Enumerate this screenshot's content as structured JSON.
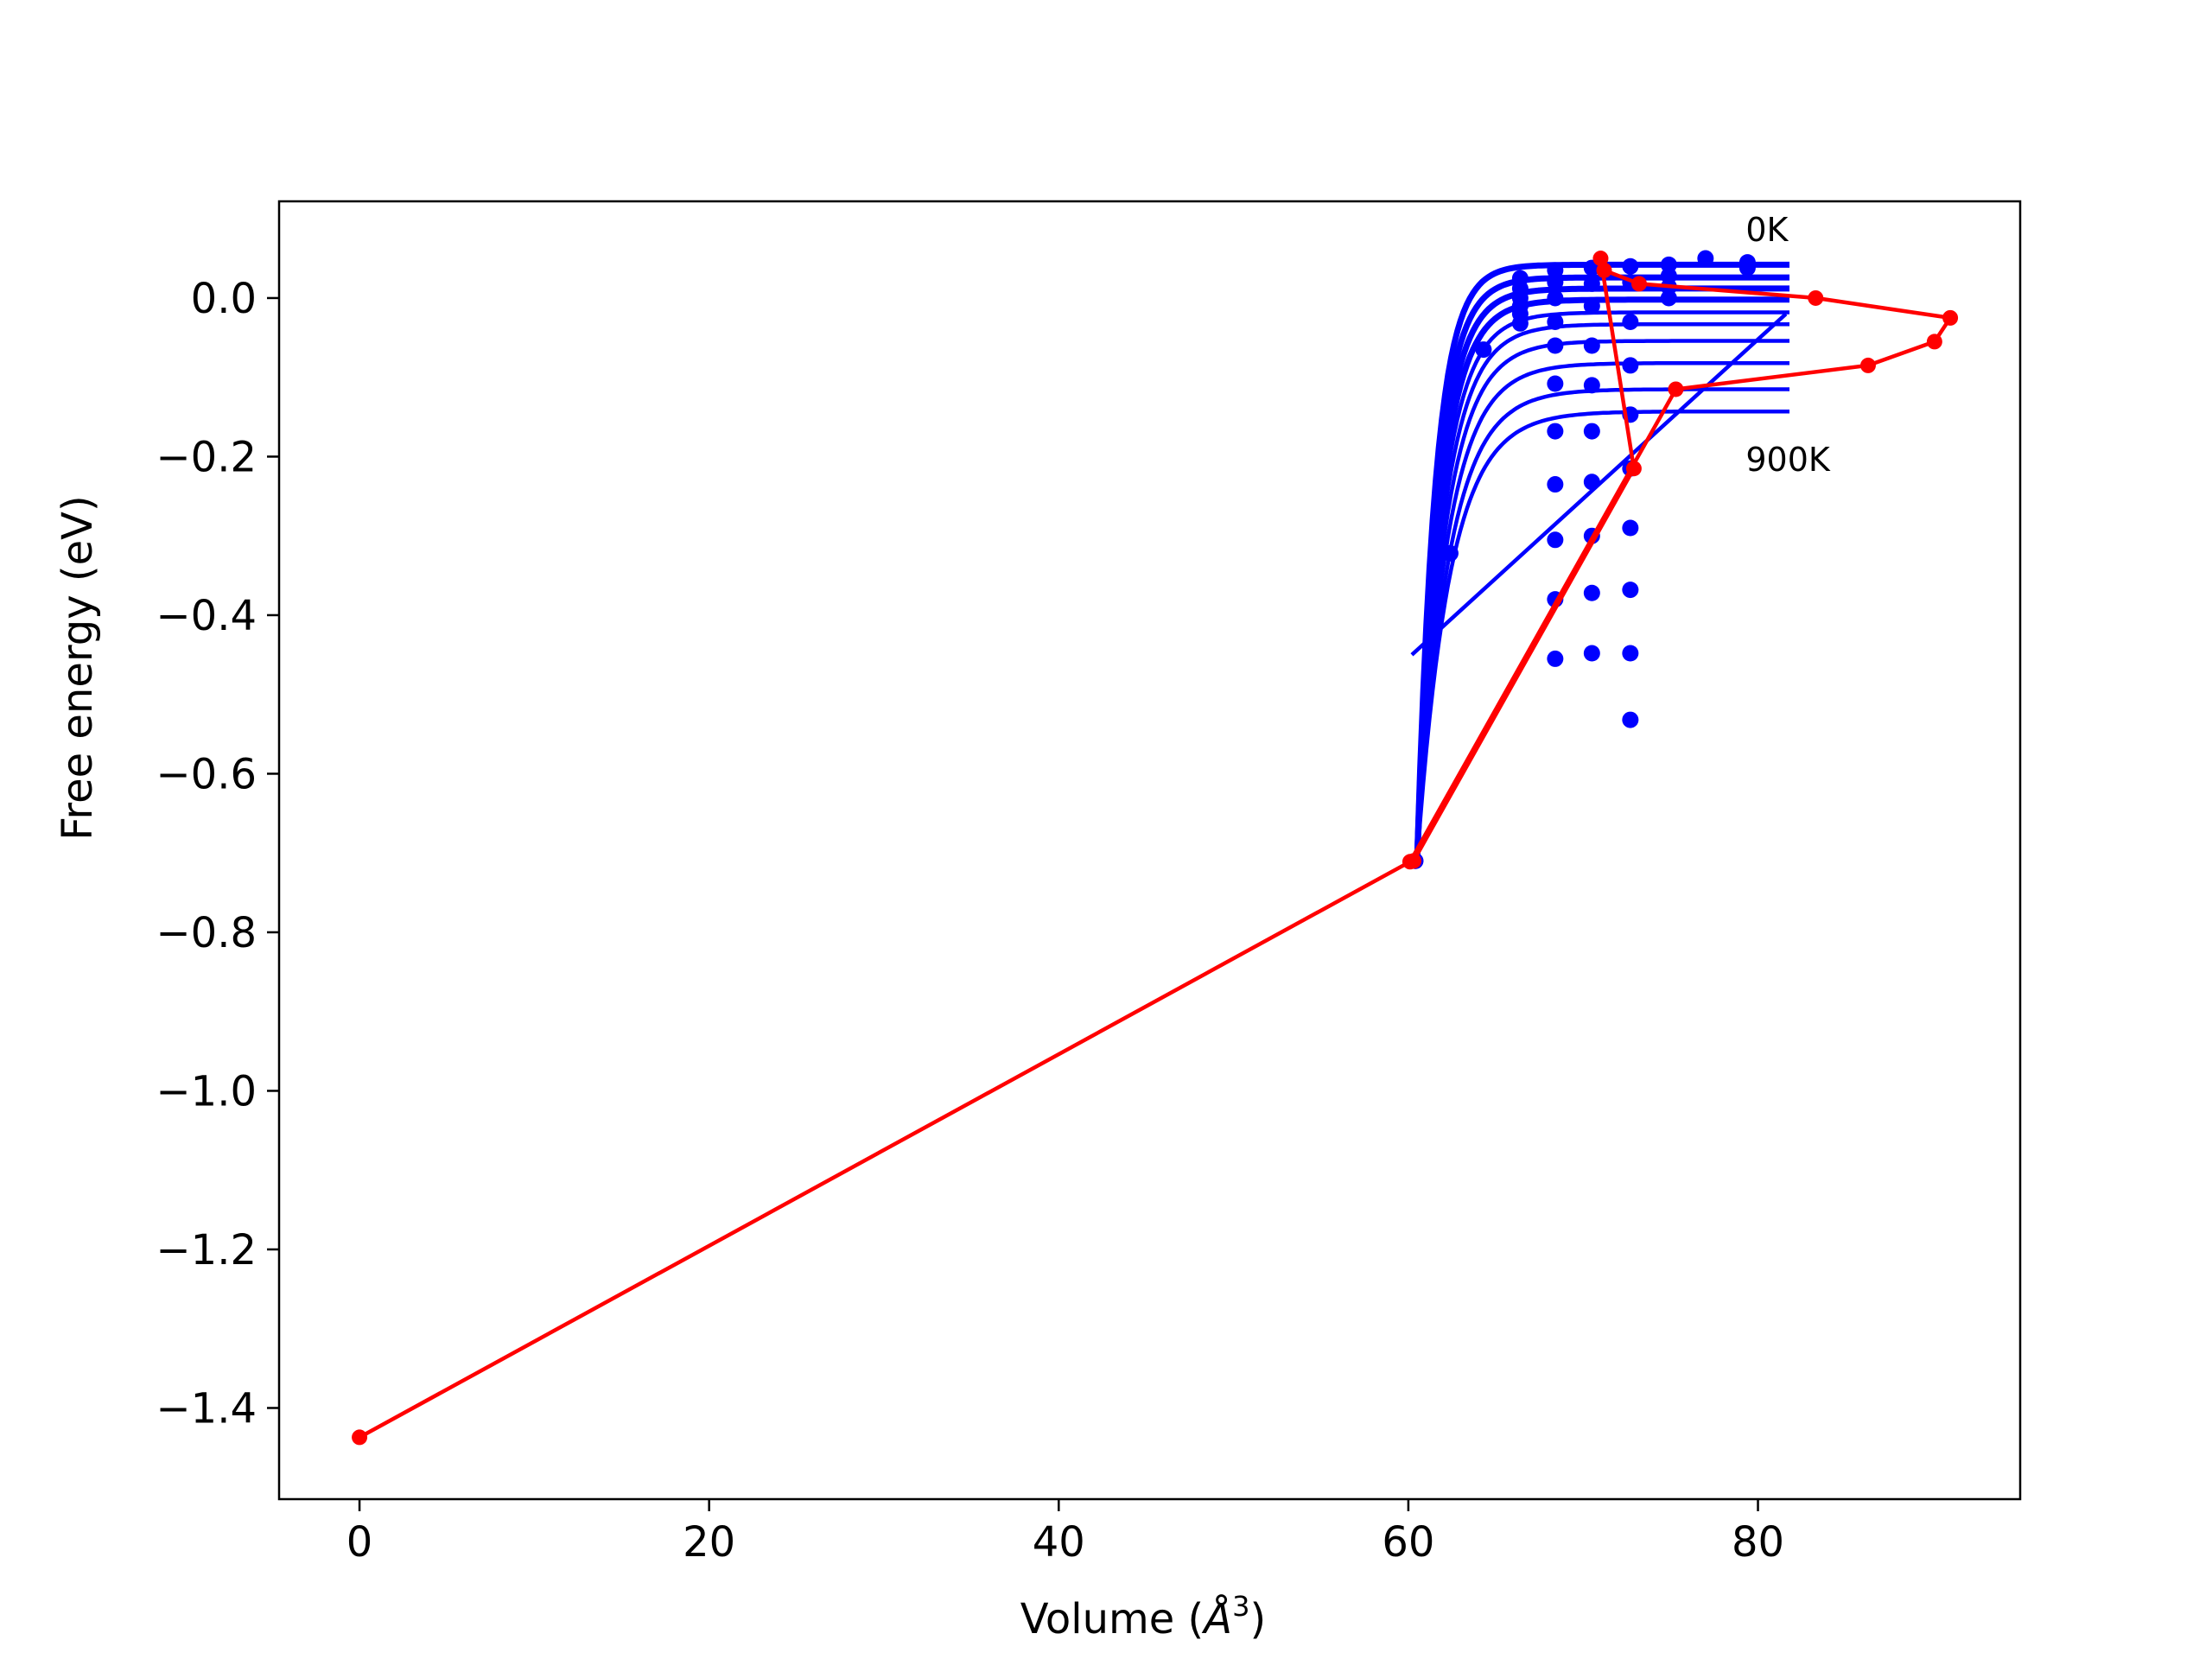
{
  "chart_data": {
    "type": "line",
    "title": "",
    "xlabel_main": "Volume (",
    "xlabel_sym": "Å",
    "xlabel_exp": "3",
    "xlabel_close": ")",
    "ylabel": "Free energy (eV)",
    "xlim": [
      -4.6,
      95.0
    ],
    "ylim": [
      -1.515,
      0.122
    ],
    "xticks": [
      0,
      20,
      40,
      60,
      80
    ],
    "yticks": [
      0.0,
      -0.2,
      -0.4,
      -0.6,
      -0.8,
      -1.0,
      -1.2,
      -1.4
    ],
    "xtick_labels": [
      "0",
      "20",
      "40",
      "60",
      "80"
    ],
    "ytick_labels": [
      "0.0",
      "−0.2",
      "−0.4",
      "−0.6",
      "−0.8",
      "−1.0",
      "−1.2",
      "−1.4"
    ],
    "grid": false,
    "annotations": [
      {
        "text": "0K",
        "x": 79.3,
        "y": 0.072
      },
      {
        "text": "900K",
        "x": 79.3,
        "y": -0.218
      }
    ],
    "fit_curves": {
      "color": "#0000ff",
      "x_start": 60.5,
      "x_end": 81.8,
      "x_rise": 61.2,
      "temperatures_K": [
        0,
        100,
        200,
        300,
        400,
        500,
        600,
        700,
        800,
        900
      ],
      "plateau_values": [
        0.042,
        0.026,
        0.012,
        -0.002,
        -0.018,
        -0.033,
        -0.054,
        -0.082,
        -0.115,
        -0.143
      ],
      "curve_shape": "exp"
    },
    "fit_line": {
      "color": "#0000ff",
      "x": [
        60.2,
        81.6
      ],
      "y": [
        -0.45,
        -0.02
      ]
    },
    "scatter_series": {
      "color": "#0000ff",
      "points": [
        [
          60.4,
          -0.71
        ],
        [
          62.4,
          -0.322
        ],
        [
          64.3,
          -0.065
        ],
        [
          66.4,
          0.025
        ],
        [
          66.4,
          0.012
        ],
        [
          66.4,
          0.0
        ],
        [
          66.4,
          -0.01
        ],
        [
          66.4,
          -0.02
        ],
        [
          66.4,
          -0.032
        ],
        [
          68.4,
          0.035
        ],
        [
          68.4,
          0.02
        ],
        [
          68.4,
          0.0
        ],
        [
          68.4,
          -0.03
        ],
        [
          68.4,
          -0.06
        ],
        [
          68.4,
          -0.108
        ],
        [
          68.4,
          -0.168
        ],
        [
          68.4,
          -0.235
        ],
        [
          68.4,
          -0.305
        ],
        [
          68.4,
          -0.38
        ],
        [
          68.4,
          -0.455
        ],
        [
          70.5,
          0.038
        ],
        [
          70.5,
          0.018
        ],
        [
          70.5,
          -0.01
        ],
        [
          70.5,
          -0.06
        ],
        [
          70.5,
          -0.11
        ],
        [
          70.5,
          -0.168
        ],
        [
          70.5,
          -0.232
        ],
        [
          70.5,
          -0.3
        ],
        [
          70.5,
          -0.372
        ],
        [
          70.5,
          -0.448
        ],
        [
          72.7,
          0.04
        ],
        [
          72.7,
          0.02
        ],
        [
          72.7,
          -0.03
        ],
        [
          72.7,
          -0.085
        ],
        [
          72.7,
          -0.147
        ],
        [
          72.7,
          -0.215
        ],
        [
          72.7,
          -0.29
        ],
        [
          72.7,
          -0.368
        ],
        [
          72.7,
          -0.448
        ],
        [
          72.7,
          -0.532
        ],
        [
          74.9,
          0.042
        ],
        [
          74.9,
          0.028
        ],
        [
          74.9,
          0.014
        ],
        [
          74.9,
          0.0
        ],
        [
          77.0,
          0.05
        ],
        [
          79.4,
          0.045
        ],
        [
          79.4,
          0.038
        ]
      ]
    },
    "series": [
      {
        "color": "#ff0000",
        "x": [
          0.0,
          60.1,
          75.3,
          86.3,
          90.1,
          91.0,
          83.3,
          73.2,
          71.2,
          71.0,
          72.9,
          60.3
        ],
        "y": [
          -1.437,
          -0.711,
          -0.115,
          -0.085,
          -0.055,
          -0.025,
          0.0,
          0.018,
          0.035,
          0.05,
          -0.215,
          -0.71
        ]
      }
    ]
  }
}
